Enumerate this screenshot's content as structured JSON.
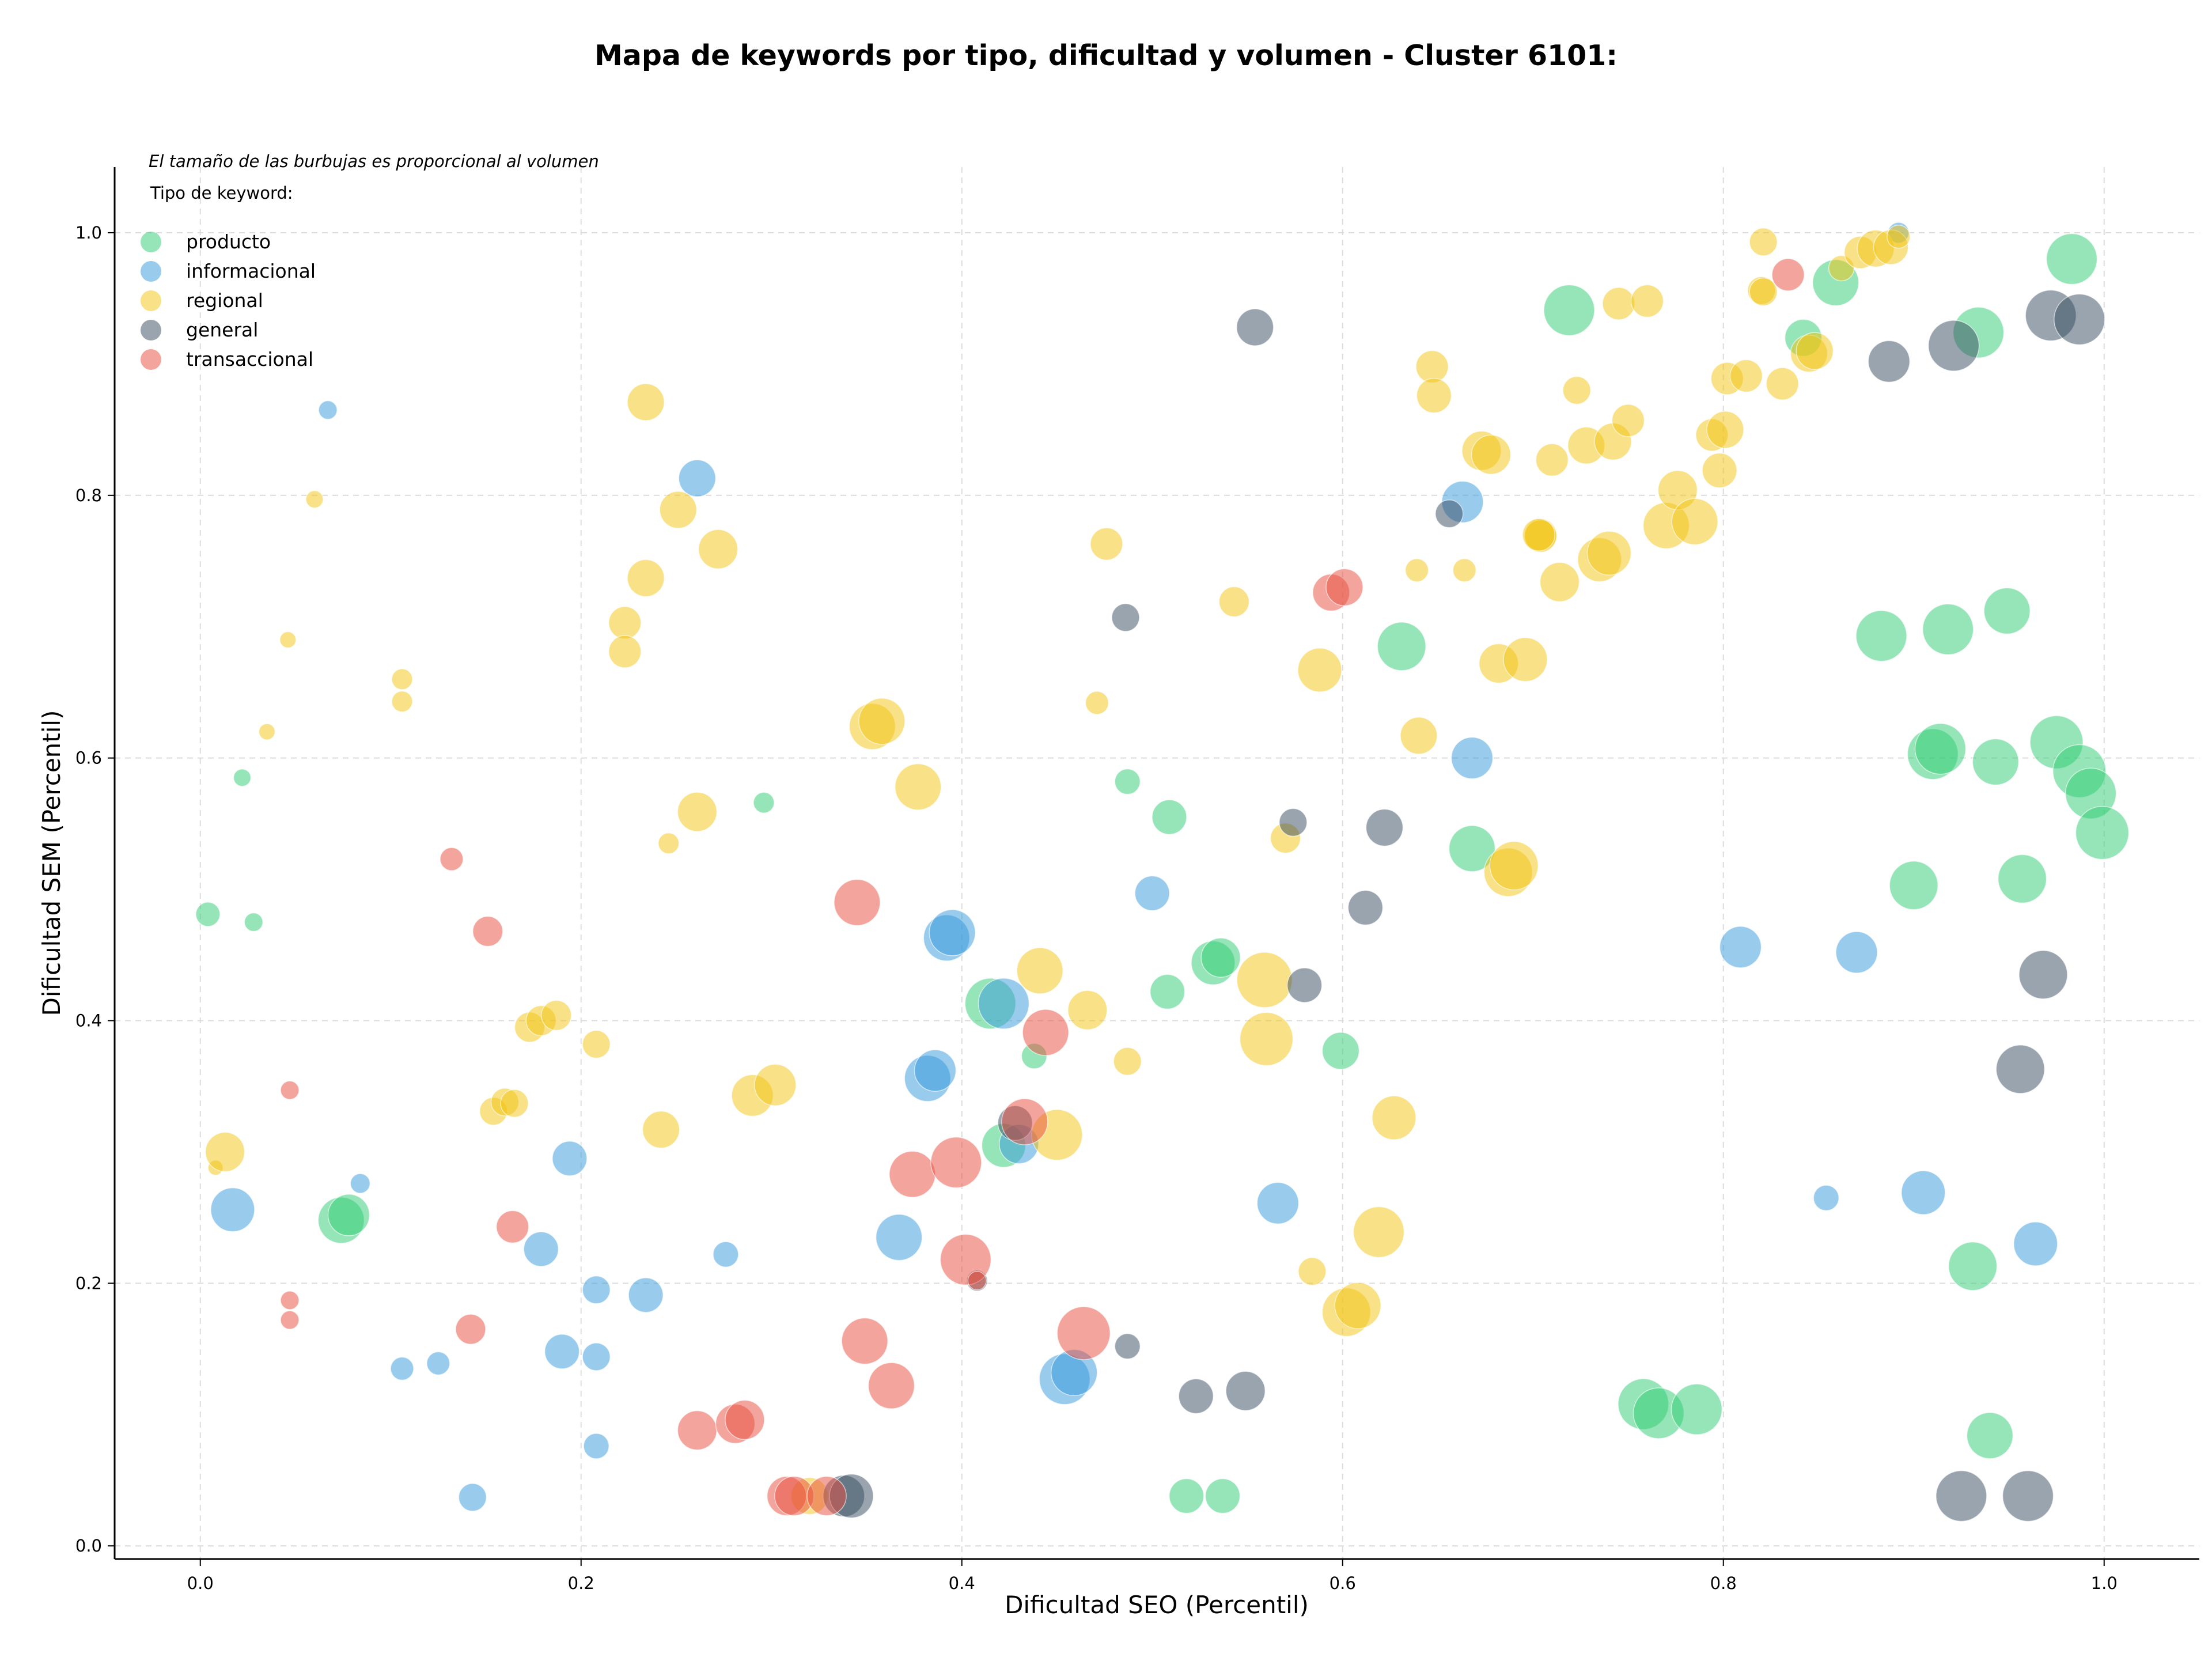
{
  "title": "Mapa de keywords por tipo, dificultad y volumen - Cluster 6101:",
  "chart_data": {
    "type": "scatter",
    "title": "Mapa de keywords por tipo, dificultad y volumen - Cluster 6101:",
    "xlabel": "Dificultad SEO (Percentil)",
    "ylabel": "Dificultad SEM (Percentil)",
    "xlim": [
      -0.045,
      1.05
    ],
    "ylim": [
      -0.01,
      1.05
    ],
    "xticks": [
      "0.0",
      "0.2",
      "0.4",
      "0.6",
      "0.8",
      "1.0"
    ],
    "yticks": [
      "0.0",
      "0.2",
      "0.4",
      "0.6",
      "0.8",
      "1.0"
    ],
    "grid": true,
    "annotation": "El tamaño de las burbujas es proporcional al volumen",
    "legend_title": "Tipo de keyword:",
    "legend_position": "top-left",
    "series": [
      {
        "name": "producto",
        "color": "#2ecc71",
        "points": [
          [
            0.004,
            0.481,
            21
          ],
          [
            0.022,
            0.585,
            15
          ],
          [
            0.028,
            0.475,
            16
          ],
          [
            0.074,
            0.248,
            40
          ],
          [
            0.078,
            0.252,
            36
          ],
          [
            0.296,
            0.566,
            18
          ],
          [
            0.415,
            0.413,
            44
          ],
          [
            0.422,
            0.305,
            38
          ],
          [
            0.438,
            0.373,
            22
          ],
          [
            0.487,
            0.582,
            22
          ],
          [
            0.508,
            0.422,
            30
          ],
          [
            0.509,
            0.555,
            30
          ],
          [
            0.518,
            0.038,
            30
          ],
          [
            0.532,
            0.444,
            38
          ],
          [
            0.536,
            0.448,
            34
          ],
          [
            0.537,
            0.038,
            30
          ],
          [
            0.599,
            0.377,
            32
          ],
          [
            0.631,
            0.685,
            42
          ],
          [
            0.668,
            0.531,
            40
          ],
          [
            0.719,
            0.941,
            44
          ],
          [
            0.758,
            0.108,
            44
          ],
          [
            0.766,
            0.101,
            44
          ],
          [
            0.786,
            0.104,
            44
          ],
          [
            0.842,
            0.92,
            32
          ],
          [
            0.859,
            0.962,
            40
          ],
          [
            0.883,
            0.693,
            44
          ],
          [
            0.9,
            0.503,
            42
          ],
          [
            0.91,
            0.603,
            44
          ],
          [
            0.914,
            0.607,
            44
          ],
          [
            0.918,
            0.698,
            44
          ],
          [
            0.934,
            0.924,
            44
          ],
          [
            0.931,
            0.213,
            42
          ],
          [
            0.94,
            0.084,
            40
          ],
          [
            0.943,
            0.597,
            40
          ],
          [
            0.949,
            0.712,
            40
          ],
          [
            0.957,
            0.508,
            42
          ],
          [
            0.975,
            0.612,
            46
          ],
          [
            0.983,
            0.98,
            44
          ],
          [
            0.987,
            0.59,
            46
          ],
          [
            0.993,
            0.573,
            44
          ],
          [
            0.999,
            0.543,
            46
          ]
        ]
      },
      {
        "name": "informacional",
        "color": "#3498db",
        "points": [
          [
            0.017,
            0.256,
            38
          ],
          [
            0.067,
            0.865,
            16
          ],
          [
            0.084,
            0.276,
            17
          ],
          [
            0.106,
            0.135,
            20
          ],
          [
            0.125,
            0.139,
            20
          ],
          [
            0.143,
            0.037,
            24
          ],
          [
            0.179,
            0.226,
            30
          ],
          [
            0.19,
            0.148,
            30
          ],
          [
            0.194,
            0.295,
            30
          ],
          [
            0.208,
            0.076,
            22
          ],
          [
            0.208,
            0.195,
            24
          ],
          [
            0.208,
            0.144,
            24
          ],
          [
            0.234,
            0.191,
            30
          ],
          [
            0.261,
            0.813,
            32
          ],
          [
            0.276,
            0.222,
            22
          ],
          [
            0.367,
            0.235,
            40
          ],
          [
            0.382,
            0.356,
            40
          ],
          [
            0.386,
            0.362,
            36
          ],
          [
            0.392,
            0.463,
            40
          ],
          [
            0.395,
            0.467,
            40
          ],
          [
            0.422,
            0.413,
            44
          ],
          [
            0.43,
            0.306,
            34
          ],
          [
            0.454,
            0.127,
            44
          ],
          [
            0.459,
            0.132,
            40
          ],
          [
            0.5,
            0.497,
            30
          ],
          [
            0.566,
            0.261,
            36
          ],
          [
            0.663,
            0.795,
            36
          ],
          [
            0.668,
            0.6,
            36
          ],
          [
            0.809,
            0.456,
            36
          ],
          [
            0.854,
            0.265,
            22
          ],
          [
            0.87,
            0.452,
            36
          ],
          [
            0.905,
            0.269,
            38
          ],
          [
            0.964,
            0.23,
            38
          ],
          [
            0.892,
            1.0,
            18
          ]
        ]
      },
      {
        "name": "regional",
        "color": "#f1c40f",
        "points": [
          [
            0.008,
            0.288,
            13
          ],
          [
            0.013,
            0.3,
            34
          ],
          [
            0.035,
            0.62,
            14
          ],
          [
            0.046,
            0.69,
            14
          ],
          [
            0.06,
            0.797,
            15
          ],
          [
            0.106,
            0.66,
            18
          ],
          [
            0.106,
            0.643,
            18
          ],
          [
            0.154,
            0.331,
            24
          ],
          [
            0.16,
            0.338,
            24
          ],
          [
            0.165,
            0.337,
            24
          ],
          [
            0.173,
            0.395,
            26
          ],
          [
            0.179,
            0.4,
            26
          ],
          [
            0.187,
            0.404,
            26
          ],
          [
            0.208,
            0.382,
            24
          ],
          [
            0.223,
            0.703,
            28
          ],
          [
            0.223,
            0.681,
            28
          ],
          [
            0.234,
            0.737,
            32
          ],
          [
            0.234,
            0.871,
            32
          ],
          [
            0.242,
            0.317,
            32
          ],
          [
            0.246,
            0.535,
            18
          ],
          [
            0.251,
            0.789,
            32
          ],
          [
            0.261,
            0.559,
            34
          ],
          [
            0.272,
            0.759,
            34
          ],
          [
            0.29,
            0.343,
            36
          ],
          [
            0.302,
            0.351,
            36
          ],
          [
            0.353,
            0.624,
            40
          ],
          [
            0.358,
            0.628,
            40
          ],
          [
            0.377,
            0.578,
            40
          ],
          [
            0.441,
            0.438,
            40
          ],
          [
            0.45,
            0.313,
            44
          ],
          [
            0.466,
            0.408,
            34
          ],
          [
            0.471,
            0.642,
            20
          ],
          [
            0.476,
            0.763,
            28
          ],
          [
            0.487,
            0.369,
            24
          ],
          [
            0.543,
            0.719,
            26
          ],
          [
            0.559,
            0.431,
            48
          ],
          [
            0.56,
            0.386,
            46
          ],
          [
            0.57,
            0.539,
            26
          ],
          [
            0.584,
            0.209,
            24
          ],
          [
            0.588,
            0.667,
            38
          ],
          [
            0.602,
            0.178,
            42
          ],
          [
            0.608,
            0.183,
            40
          ],
          [
            0.627,
            0.326,
            38
          ],
          [
            0.619,
            0.239,
            44
          ],
          [
            0.64,
            0.617,
            32
          ],
          [
            0.647,
            0.898,
            28
          ],
          [
            0.648,
            0.876,
            30
          ],
          [
            0.673,
            0.834,
            34
          ],
          [
            0.678,
            0.831,
            34
          ],
          [
            0.682,
            0.672,
            34
          ],
          [
            0.687,
            0.513,
            42
          ],
          [
            0.69,
            0.518,
            42
          ],
          [
            0.696,
            0.675,
            38
          ],
          [
            0.704,
            0.77,
            28
          ],
          [
            0.704,
            0.769,
            28
          ],
          [
            0.71,
            0.827,
            28
          ],
          [
            0.714,
            0.734,
            34
          ],
          [
            0.723,
            0.88,
            24
          ],
          [
            0.728,
            0.838,
            32
          ],
          [
            0.735,
            0.751,
            38
          ],
          [
            0.74,
            0.756,
            38
          ],
          [
            0.742,
            0.841,
            32
          ],
          [
            0.745,
            0.946,
            28
          ],
          [
            0.76,
            0.948,
            28
          ],
          [
            0.75,
            0.857,
            28
          ],
          [
            0.77,
            0.777,
            40
          ],
          [
            0.776,
            0.804,
            34
          ],
          [
            0.785,
            0.78,
            40
          ],
          [
            0.794,
            0.846,
            28
          ],
          [
            0.798,
            0.819,
            30
          ],
          [
            0.801,
            0.85,
            32
          ],
          [
            0.802,
            0.889,
            28
          ],
          [
            0.812,
            0.891,
            28
          ],
          [
            0.821,
            0.993,
            24
          ],
          [
            0.82,
            0.956,
            24
          ],
          [
            0.821,
            0.955,
            24
          ],
          [
            0.831,
            0.885,
            28
          ],
          [
            0.845,
            0.908,
            32
          ],
          [
            0.848,
            0.91,
            32
          ],
          [
            0.862,
            0.973,
            22
          ],
          [
            0.872,
            0.985,
            28
          ],
          [
            0.88,
            0.988,
            32
          ],
          [
            0.888,
            0.989,
            30
          ],
          [
            0.892,
            0.997,
            20
          ],
          [
            0.703,
            0.77,
            28
          ],
          [
            0.664,
            0.743,
            20
          ],
          [
            0.639,
            0.743,
            20
          ],
          [
            0.32,
            0.038,
            32
          ]
        ]
      },
      {
        "name": "general",
        "color": "#34495e",
        "points": [
          [
            0.338,
            0.038,
            36
          ],
          [
            0.342,
            0.038,
            38
          ],
          [
            0.428,
            0.322,
            30
          ],
          [
            0.487,
            0.152,
            22
          ],
          [
            0.486,
            0.707,
            24
          ],
          [
            0.523,
            0.114,
            30
          ],
          [
            0.549,
            0.118,
            34
          ],
          [
            0.554,
            0.928,
            32
          ],
          [
            0.574,
            0.551,
            24
          ],
          [
            0.58,
            0.427,
            30
          ],
          [
            0.612,
            0.486,
            30
          ],
          [
            0.622,
            0.547,
            32
          ],
          [
            0.656,
            0.786,
            24
          ],
          [
            0.408,
            0.202,
            18
          ],
          [
            0.887,
            0.902,
            36
          ],
          [
            0.921,
            0.914,
            44
          ],
          [
            0.925,
            0.038,
            44
          ],
          [
            0.956,
            0.363,
            42
          ],
          [
            0.96,
            0.038,
            44
          ],
          [
            0.968,
            0.435,
            42
          ],
          [
            0.972,
            0.937,
            44
          ],
          [
            0.987,
            0.934,
            44
          ]
        ]
      },
      {
        "name": "transaccional",
        "color": "#e74c3c",
        "points": [
          [
            0.047,
            0.347,
            16
          ],
          [
            0.047,
            0.187,
            16
          ],
          [
            0.047,
            0.172,
            16
          ],
          [
            0.132,
            0.523,
            20
          ],
          [
            0.142,
            0.165,
            26
          ],
          [
            0.151,
            0.468,
            26
          ],
          [
            0.164,
            0.243,
            28
          ],
          [
            0.261,
            0.088,
            34
          ],
          [
            0.281,
            0.093,
            34
          ],
          [
            0.286,
            0.096,
            34
          ],
          [
            0.308,
            0.038,
            34
          ],
          [
            0.312,
            0.038,
            34
          ],
          [
            0.329,
            0.038,
            34
          ],
          [
            0.345,
            0.49,
            40
          ],
          [
            0.349,
            0.156,
            40
          ],
          [
            0.363,
            0.122,
            40
          ],
          [
            0.374,
            0.283,
            40
          ],
          [
            0.397,
            0.292,
            44
          ],
          [
            0.402,
            0.218,
            44
          ],
          [
            0.408,
            0.202,
            16
          ],
          [
            0.433,
            0.323,
            40
          ],
          [
            0.444,
            0.391,
            40
          ],
          [
            0.464,
            0.162,
            46
          ],
          [
            0.594,
            0.726,
            32
          ],
          [
            0.601,
            0.73,
            32
          ],
          [
            0.834,
            0.968,
            28
          ]
        ]
      }
    ]
  }
}
